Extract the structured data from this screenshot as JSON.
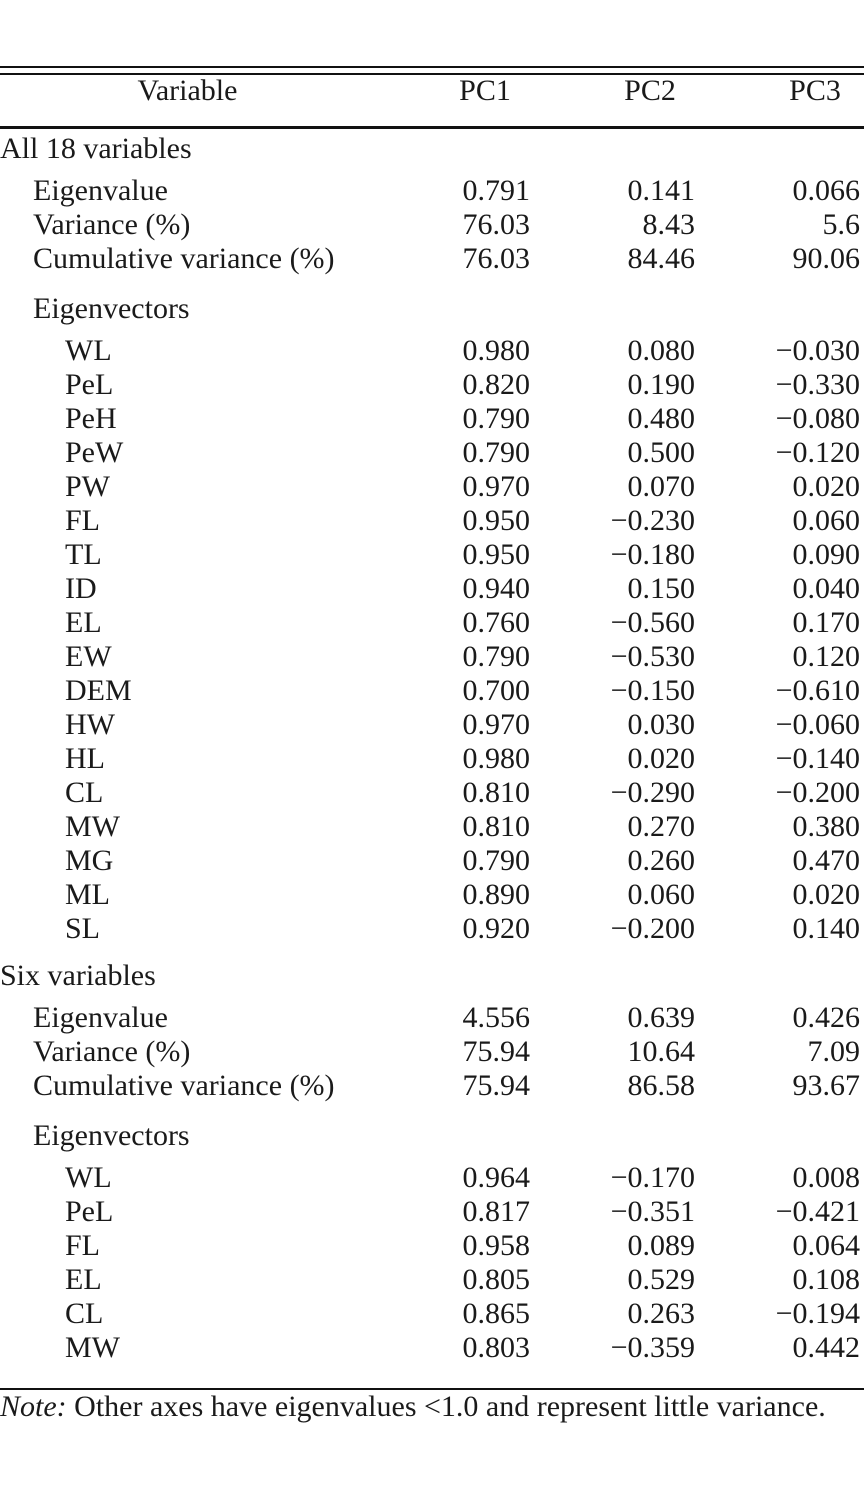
{
  "header": {
    "variable": "Variable",
    "pc1": "PC1",
    "pc2": "PC2",
    "pc3": "PC3"
  },
  "section1": {
    "title": "All 18 variables",
    "stats": [
      {
        "label": "Eigenvalue",
        "pc1": "0.791",
        "pc2": "0.141",
        "pc3": "0.066"
      },
      {
        "label": "Variance (%)",
        "pc1": "76.03",
        "pc2": "8.43",
        "pc3": "5.6"
      },
      {
        "label": "Cumulative variance (%)",
        "pc1": "76.03",
        "pc2": "84.46",
        "pc3": "90.06"
      }
    ],
    "eigen_title": "Eigenvectors",
    "eigenvectors": [
      {
        "label": "WL",
        "pc1": "0.980",
        "pc2": "0.080",
        "pc3": "−0.030"
      },
      {
        "label": "PeL",
        "pc1": "0.820",
        "pc2": "0.190",
        "pc3": "−0.330"
      },
      {
        "label": "PeH",
        "pc1": "0.790",
        "pc2": "0.480",
        "pc3": "−0.080"
      },
      {
        "label": "PeW",
        "pc1": "0.790",
        "pc2": "0.500",
        "pc3": "−0.120"
      },
      {
        "label": "PW",
        "pc1": "0.970",
        "pc2": "0.070",
        "pc3": "0.020"
      },
      {
        "label": "FL",
        "pc1": "0.950",
        "pc2": "−0.230",
        "pc3": "0.060"
      },
      {
        "label": "TL",
        "pc1": "0.950",
        "pc2": "−0.180",
        "pc3": "0.090"
      },
      {
        "label": "ID",
        "pc1": "0.940",
        "pc2": "0.150",
        "pc3": "0.040"
      },
      {
        "label": "EL",
        "pc1": "0.760",
        "pc2": "−0.560",
        "pc3": "0.170"
      },
      {
        "label": "EW",
        "pc1": "0.790",
        "pc2": "−0.530",
        "pc3": "0.120"
      },
      {
        "label": "DEM",
        "pc1": "0.700",
        "pc2": "−0.150",
        "pc3": "−0.610"
      },
      {
        "label": "HW",
        "pc1": "0.970",
        "pc2": "0.030",
        "pc3": "−0.060"
      },
      {
        "label": "HL",
        "pc1": "0.980",
        "pc2": "0.020",
        "pc3": "−0.140"
      },
      {
        "label": "CL",
        "pc1": "0.810",
        "pc2": "−0.290",
        "pc3": "−0.200"
      },
      {
        "label": "MW",
        "pc1": "0.810",
        "pc2": "0.270",
        "pc3": "0.380"
      },
      {
        "label": "MG",
        "pc1": "0.790",
        "pc2": "0.260",
        "pc3": "0.470"
      },
      {
        "label": "ML",
        "pc1": "0.890",
        "pc2": "0.060",
        "pc3": "0.020"
      },
      {
        "label": "SL",
        "pc1": "0.920",
        "pc2": "−0.200",
        "pc3": "0.140"
      }
    ]
  },
  "section2": {
    "title": "Six variables",
    "stats": [
      {
        "label": "Eigenvalue",
        "pc1": "4.556",
        "pc2": "0.639",
        "pc3": "0.426"
      },
      {
        "label": "Variance (%)",
        "pc1": "75.94",
        "pc2": "10.64",
        "pc3": "7.09"
      },
      {
        "label": "Cumulative variance (%)",
        "pc1": "75.94",
        "pc2": "86.58",
        "pc3": "93.67"
      }
    ],
    "eigen_title": "Eigenvectors",
    "eigenvectors": [
      {
        "label": "WL",
        "pc1": "0.964",
        "pc2": "−0.170",
        "pc3": "0.008"
      },
      {
        "label": "PeL",
        "pc1": "0.817",
        "pc2": "−0.351",
        "pc3": "−0.421"
      },
      {
        "label": "FL",
        "pc1": "0.958",
        "pc2": "0.089",
        "pc3": "0.064"
      },
      {
        "label": "EL",
        "pc1": "0.805",
        "pc2": "0.529",
        "pc3": "0.108"
      },
      {
        "label": "CL",
        "pc1": "0.865",
        "pc2": "0.263",
        "pc3": "−0.194"
      },
      {
        "label": "MW",
        "pc1": "0.803",
        "pc2": "−0.359",
        "pc3": "0.442"
      }
    ]
  },
  "note": {
    "label": "Note:",
    "text": " Other axes have eigenvalues <1.0 and represent little variance."
  }
}
